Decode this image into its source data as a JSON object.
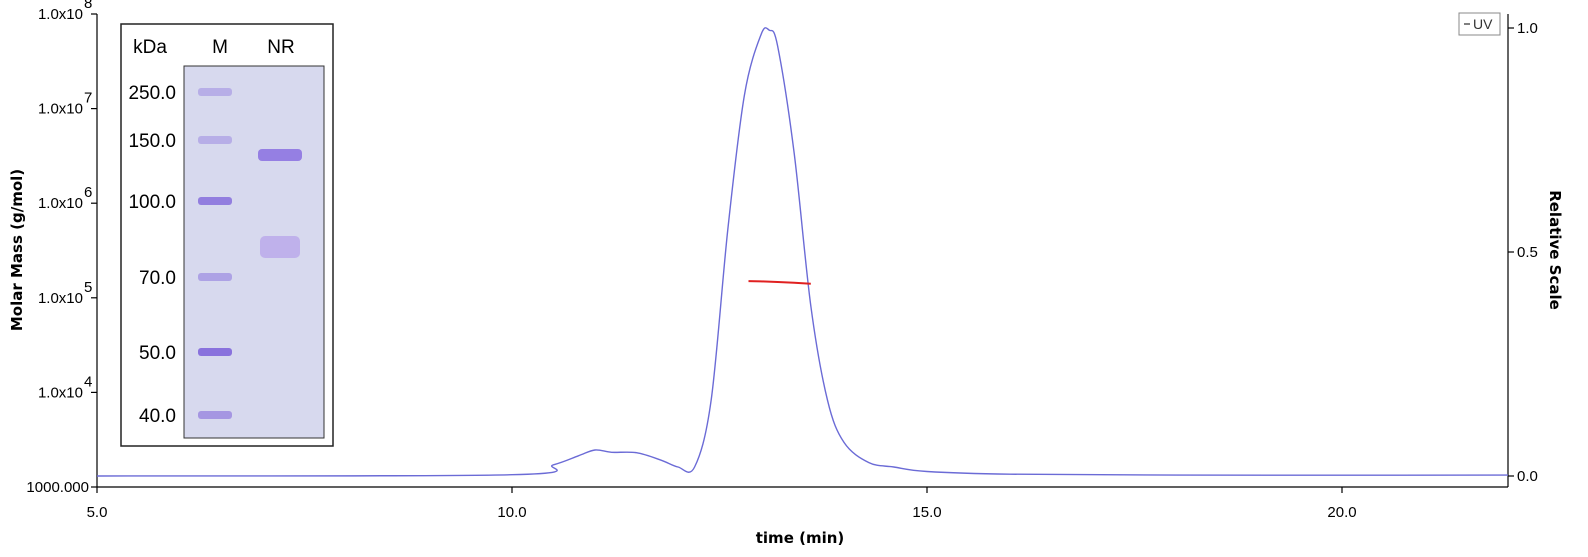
{
  "chart_data": {
    "type": "line",
    "xlabel": "time (min)",
    "ylabel_left": "Molar Mass (g/mol)",
    "ylabel_right": "Relative Scale",
    "xlim": [
      5.0,
      22.0
    ],
    "ylim_left": [
      1000,
      100000000
    ],
    "ylim_right": [
      0.0,
      1.0
    ],
    "y_left_scale": "log",
    "x_ticks": [
      "5.0",
      "10.0",
      "15.0",
      "20.0"
    ],
    "y_left_ticks": [
      {
        "mantissa": "1.0x10",
        "exp": "8"
      },
      {
        "mantissa": "1.0x10",
        "exp": "7"
      },
      {
        "mantissa": "1.0x10",
        "exp": "6"
      },
      {
        "mantissa": "1.0x10",
        "exp": "5"
      },
      {
        "mantissa": "1.0x10",
        "exp": "4"
      },
      {
        "mantissa": "1000.000",
        "exp": ""
      }
    ],
    "y_right_ticks": [
      "1.0",
      "0.5",
      "0.0"
    ],
    "legend": {
      "entries": [
        "UV"
      ],
      "position": "top-right"
    },
    "series": [
      {
        "name": "UV",
        "color": "#6b6bd6",
        "axis": "right",
        "x": [
          5.0,
          10.0,
          10.5,
          10.8,
          11.0,
          11.2,
          11.5,
          11.8,
          12.0,
          12.2,
          12.4,
          12.6,
          12.8,
          13.0,
          13.1,
          13.2,
          13.4,
          13.6,
          13.8,
          14.0,
          14.3,
          14.6,
          15.0,
          16.0,
          18.0,
          22.0
        ],
        "values": [
          0.0,
          0.003,
          0.025,
          0.045,
          0.058,
          0.053,
          0.052,
          0.035,
          0.02,
          0.02,
          0.17,
          0.55,
          0.85,
          0.985,
          0.995,
          0.96,
          0.72,
          0.38,
          0.17,
          0.075,
          0.03,
          0.02,
          0.01,
          0.004,
          0.002,
          0.002
        ]
      },
      {
        "name": "Molar Mass",
        "color": "#e02020",
        "axis": "left",
        "x": [
          12.85,
          13.0,
          13.2,
          13.4,
          13.6
        ],
        "values": [
          150000,
          149000,
          147000,
          144000,
          141000
        ]
      }
    ]
  },
  "inset": {
    "header": {
      "kda": "kDa",
      "m": "M",
      "nr": "NR"
    },
    "markers": [
      "250.0",
      "150.0",
      "100.0",
      "70.0",
      "50.0",
      "40.0"
    ]
  }
}
